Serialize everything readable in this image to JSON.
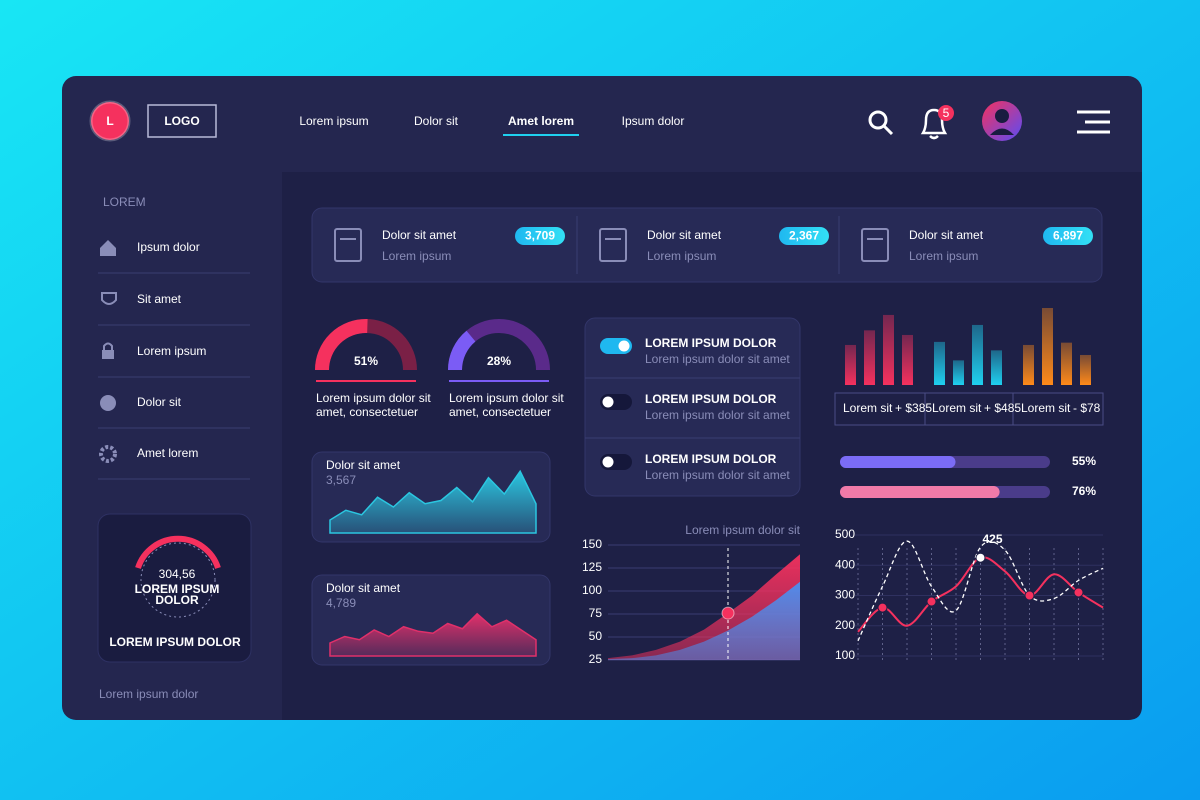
{
  "header": {
    "logo_letter": "L",
    "logo": "LOGO",
    "nav": [
      "Lorem ipsum",
      "Dolor sit",
      "Amet lorem",
      "Ipsum dolor"
    ],
    "active_nav": 2,
    "notifications": 5
  },
  "sidebar": {
    "heading": "LOREM",
    "items": [
      "Ipsum dolor",
      "Sit amet",
      "Lorem ipsum",
      "Dolor sit",
      "Amet lorem"
    ],
    "gauge": {
      "value": "304,56",
      "line1": "LOREM IPSUM",
      "line2": "DOLOR",
      "caption": "LOREM IPSUM DOLOR"
    },
    "footer": "Lorem ipsum dolor"
  },
  "stats": [
    {
      "title": "Dolor sit amet",
      "subtitle": "Lorem ipsum",
      "badge": "3,709"
    },
    {
      "title": "Dolor sit amet",
      "subtitle": "Lorem ipsum",
      "badge": "2,367"
    },
    {
      "title": "Dolor sit amet",
      "subtitle": "Lorem ipsum",
      "badge": "6,897"
    }
  ],
  "gauges": {
    "lim": [
      0,
      100
    ],
    "items": [
      {
        "value": 51,
        "label": "51%",
        "color": "#f5315e",
        "track": "#7a2046",
        "lines": [
          "Lorem ipsum dolor sit",
          "amet, consectetuer"
        ]
      },
      {
        "value": 28,
        "label": "28%",
        "color": "#7b5cf5",
        "track": "#5a2a8a",
        "lines": [
          "Lorem ipsum dolor sit",
          "amet, consectetuer"
        ]
      }
    ]
  },
  "area_cards": {
    "ylim": [
      0,
      100
    ],
    "items": [
      {
        "title": "Dolor sit amet",
        "value": "3,567",
        "color": "#2bc6e0",
        "values": [
          20,
          35,
          28,
          55,
          40,
          62,
          45,
          50,
          70,
          48,
          85,
          60,
          95,
          45
        ]
      },
      {
        "title": "Dolor sit amet",
        "value": "4,789",
        "color": "#e0306a",
        "values": [
          20,
          30,
          25,
          40,
          30,
          45,
          38,
          35,
          50,
          42,
          65,
          45,
          55,
          40,
          25
        ]
      }
    ]
  },
  "toggles": [
    {
      "title": "LOREM IPSUM DOLOR",
      "subtitle": "Lorem ipsum dolor sit amet",
      "on": true
    },
    {
      "title": "LOREM IPSUM DOLOR",
      "subtitle": "Lorem ipsum dolor sit amet",
      "on": false
    },
    {
      "title": "LOREM IPSUM DOLOR",
      "subtitle": "Lorem ipsum dolor sit amet",
      "on": false
    }
  ],
  "bar_chart": {
    "ylim": [
      0,
      100
    ],
    "groups": [
      {
        "color": "#f5315e",
        "values": [
          52,
          71,
          91,
          65
        ]
      },
      {
        "color": "#1fd0f0",
        "values": [
          56,
          32,
          78,
          45
        ]
      },
      {
        "color": "#ff8a1a",
        "values": [
          52,
          100,
          55,
          39
        ]
      }
    ],
    "legend": [
      {
        "label": "Lorem sit",
        "change": "+ $385"
      },
      {
        "label": "Lorem sit",
        "change": "+ $485"
      },
      {
        "label": "Lorem sit",
        "change": "- $78"
      }
    ]
  },
  "progress": {
    "xlim": [
      0,
      100
    ],
    "items": [
      {
        "value": 55,
        "label": "55%",
        "color": "#7b6cf6"
      },
      {
        "value": 76,
        "label": "76%",
        "color": "#f07aa8"
      }
    ]
  },
  "area_chart": {
    "title": "Lorem ipsum dolor sit",
    "ylim": [
      25,
      150
    ],
    "yticks": [
      150,
      125,
      100,
      75,
      50,
      25
    ],
    "series": [
      {
        "color": "#f5315e",
        "values": [
          27,
          30,
          36,
          45,
          58,
          76,
          95,
          118,
          140
        ]
      },
      {
        "color": "#4a8ff0",
        "values": [
          26,
          27,
          30,
          36,
          45,
          57,
          72,
          90,
          110
        ]
      }
    ],
    "highlight": 5
  },
  "wave_chart": {
    "ylim": [
      100,
      500
    ],
    "yticks": [
      500,
      400,
      300,
      200,
      100
    ],
    "series": [
      {
        "color": "#f5315e",
        "values": [
          180,
          260,
          200,
          280,
          330,
          425,
          380,
          300,
          370,
          310,
          260
        ],
        "markers": [
          1,
          3,
          5,
          7,
          9
        ],
        "label_index": 5
      },
      {
        "color": "#ffffff",
        "dashed": true,
        "values": [
          150,
          330,
          480,
          330,
          250,
          460,
          450,
          300,
          290,
          350,
          390
        ]
      }
    ]
  }
}
